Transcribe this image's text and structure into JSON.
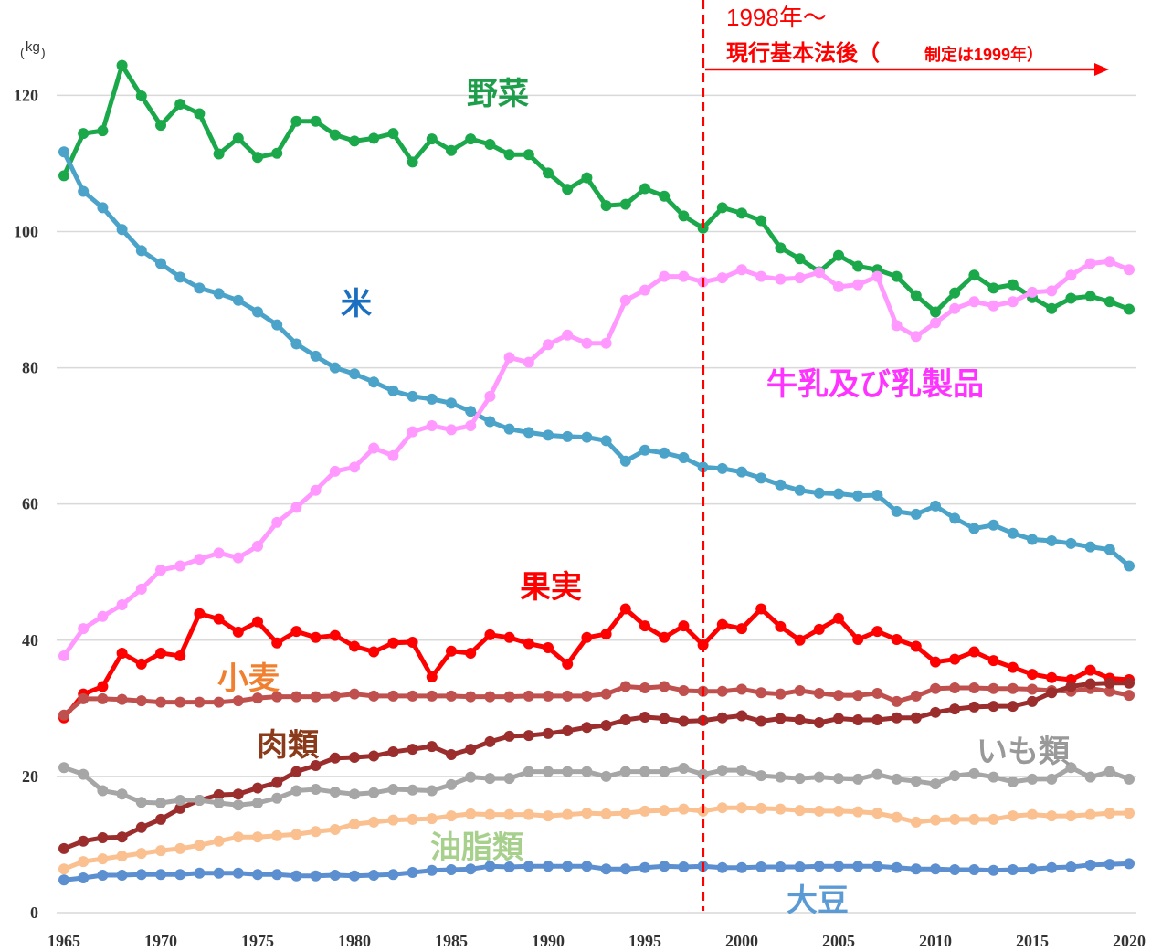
{
  "chart_data": {
    "type": "line",
    "y_unit_label": "kg",
    "annotations": [
      "1998年～",
      "現行基本法後（",
      "制定は1999年）"
    ],
    "vline_x": 1998,
    "xlim": [
      1965,
      2020
    ],
    "xticks": [
      1965,
      1970,
      1975,
      1980,
      1985,
      1990,
      1995,
      2000,
      2005,
      2010,
      2015,
      2020
    ],
    "ylim": [
      0,
      134
    ],
    "yticks": [
      0,
      20,
      40,
      60,
      80,
      100,
      120
    ],
    "grid": true,
    "x": [
      1965,
      1966,
      1967,
      1968,
      1969,
      1970,
      1971,
      1972,
      1973,
      1974,
      1975,
      1976,
      1977,
      1978,
      1979,
      1980,
      1981,
      1982,
      1983,
      1984,
      1985,
      1986,
      1987,
      1988,
      1989,
      1990,
      1991,
      1992,
      1993,
      1994,
      1995,
      1996,
      1997,
      1998,
      1999,
      2000,
      2001,
      2002,
      2003,
      2004,
      2005,
      2006,
      2007,
      2008,
      2009,
      2010,
      2011,
      2012,
      2013,
      2014,
      2015,
      2016,
      2017,
      2018,
      2019,
      2020
    ],
    "series": [
      {
        "name": "野菜",
        "color": "#1aa84a",
        "label_color": "#1e9e4a",
        "values": [
          108.2,
          114.4,
          114.8,
          124.4,
          119.9,
          115.6,
          118.7,
          117.3,
          111.4,
          113.7,
          110.9,
          111.5,
          116.2,
          116.2,
          114.2,
          113.3,
          113.7,
          114.4,
          110.2,
          113.6,
          111.9,
          113.6,
          112.8,
          111.3,
          111.3,
          108.6,
          106.2,
          107.9,
          103.8,
          104.0,
          106.3,
          105.2,
          102.3,
          100.5,
          103.5,
          102.7,
          101.6,
          97.6,
          96.0,
          94.1,
          96.5,
          94.9,
          94.4,
          93.4,
          90.6,
          88.2,
          91.0,
          93.6,
          91.7,
          92.2,
          90.3,
          88.7,
          90.2,
          90.5,
          89.7,
          88.6
        ]
      },
      {
        "name": "米",
        "color": "#4ba3c9",
        "label_color": "#1a6fc0",
        "values": [
          111.7,
          105.9,
          103.5,
          100.3,
          97.2,
          95.3,
          93.3,
          91.7,
          90.9,
          89.9,
          88.2,
          86.3,
          83.5,
          81.7,
          80.0,
          79.1,
          77.9,
          76.6,
          75.8,
          75.4,
          74.8,
          73.6,
          72.1,
          71.0,
          70.5,
          70.1,
          69.9,
          69.8,
          69.3,
          66.3,
          67.9,
          67.5,
          66.8,
          65.4,
          65.2,
          64.7,
          63.8,
          62.8,
          62.0,
          61.6,
          61.5,
          61.2,
          61.3,
          58.9,
          58.5,
          59.7,
          57.9,
          56.4,
          56.9,
          55.7,
          54.8,
          54.6,
          54.2,
          53.7,
          53.3,
          50.9
        ]
      },
      {
        "name": "牛乳及び乳製品",
        "color": "#ff99ff",
        "label_color": "#ff33ff",
        "values": [
          37.7,
          41.7,
          43.5,
          45.2,
          47.5,
          50.3,
          50.9,
          51.9,
          52.8,
          52.1,
          53.8,
          57.3,
          59.5,
          62.0,
          64.8,
          65.4,
          68.2,
          67.1,
          70.6,
          71.5,
          70.9,
          71.5,
          75.8,
          81.5,
          80.8,
          83.4,
          84.8,
          83.6,
          83.6,
          89.9,
          91.4,
          93.4,
          93.4,
          92.6,
          93.2,
          94.4,
          93.4,
          93.0,
          93.2,
          94.0,
          91.9,
          92.2,
          93.4,
          86.2,
          84.6,
          86.6,
          88.7,
          89.7,
          89.1,
          89.7,
          91.1,
          91.3,
          93.6,
          95.3,
          95.6,
          94.4
        ]
      },
      {
        "name": "果実",
        "color": "#ff0000",
        "label_color": "#ff0000",
        "values": [
          28.6,
          32.1,
          33.2,
          38.1,
          36.5,
          38.1,
          37.7,
          43.9,
          43.1,
          41.2,
          42.7,
          39.6,
          41.3,
          40.4,
          40.7,
          39.1,
          38.3,
          39.6,
          39.7,
          34.6,
          38.4,
          38.1,
          40.8,
          40.4,
          39.5,
          38.9,
          36.5,
          40.4,
          40.9,
          44.6,
          42.1,
          40.4,
          42.1,
          39.3,
          42.3,
          41.7,
          44.6,
          42.0,
          40.0,
          41.6,
          43.2,
          40.1,
          41.3,
          40.1,
          39.1,
          36.8,
          37.2,
          38.3,
          37.0,
          36.0,
          35.0,
          34.5,
          34.2,
          35.6,
          34.4,
          34.2
        ]
      },
      {
        "name": "小麦",
        "color": "#c0504d",
        "label_color": "#f08030",
        "values": [
          29.0,
          31.4,
          31.4,
          31.3,
          31.1,
          30.9,
          30.9,
          30.9,
          30.9,
          31.1,
          31.5,
          31.7,
          31.7,
          31.7,
          31.8,
          32.1,
          31.8,
          31.8,
          31.8,
          31.8,
          31.8,
          31.7,
          31.7,
          31.7,
          31.8,
          31.8,
          31.8,
          31.8,
          32.1,
          33.2,
          33.0,
          33.2,
          32.6,
          32.5,
          32.5,
          32.8,
          32.3,
          32.1,
          32.6,
          32.2,
          31.9,
          31.9,
          32.2,
          31.0,
          31.8,
          32.9,
          33.0,
          33.0,
          32.9,
          32.9,
          32.8,
          32.6,
          32.5,
          32.9,
          32.5,
          31.9
        ]
      },
      {
        "name": "肉類",
        "color": "#9b2d2d",
        "label_color": "#8b3a1a",
        "values": [
          9.4,
          10.5,
          11.0,
          11.1,
          12.5,
          13.7,
          15.3,
          16.5,
          17.3,
          17.4,
          18.3,
          19.1,
          20.7,
          21.6,
          22.7,
          22.8,
          23.0,
          23.6,
          24.0,
          24.4,
          23.2,
          24.0,
          25.1,
          25.9,
          26.0,
          26.3,
          26.7,
          27.2,
          27.5,
          28.3,
          28.7,
          28.5,
          28.1,
          28.2,
          28.6,
          28.9,
          28.1,
          28.5,
          28.3,
          27.9,
          28.5,
          28.3,
          28.3,
          28.6,
          28.6,
          29.4,
          29.9,
          30.2,
          30.3,
          30.3,
          31.0,
          32.3,
          33.2,
          33.6,
          33.7,
          33.7
        ]
      },
      {
        "name": "いも類",
        "color": "#a6a6a6",
        "label_color": "#999999",
        "values": [
          21.3,
          20.3,
          17.9,
          17.4,
          16.2,
          16.1,
          16.5,
          16.5,
          16.1,
          15.8,
          16.1,
          16.8,
          17.9,
          18.1,
          17.7,
          17.4,
          17.6,
          18.1,
          18.0,
          17.9,
          18.8,
          19.9,
          19.7,
          19.7,
          20.7,
          20.7,
          20.7,
          20.7,
          20.0,
          20.7,
          20.7,
          20.7,
          21.2,
          20.3,
          20.9,
          20.9,
          20.1,
          19.9,
          19.7,
          19.9,
          19.7,
          19.6,
          20.3,
          19.6,
          19.3,
          18.9,
          20.1,
          20.4,
          19.9,
          19.2,
          19.6,
          19.6,
          21.3,
          19.9,
          20.7,
          19.6
        ]
      },
      {
        "name": "油脂類",
        "color": "#fac090",
        "label_color": "#a8d08d",
        "values": [
          6.4,
          7.5,
          7.9,
          8.3,
          8.7,
          9.1,
          9.4,
          9.9,
          10.5,
          11.1,
          11.1,
          11.3,
          11.5,
          11.9,
          12.2,
          13.0,
          13.3,
          13.6,
          13.7,
          13.8,
          14.2,
          14.5,
          14.4,
          14.4,
          14.4,
          14.2,
          14.4,
          14.6,
          14.5,
          14.6,
          14.9,
          15.0,
          15.2,
          14.9,
          15.4,
          15.4,
          15.3,
          15.2,
          15.0,
          14.9,
          14.9,
          14.8,
          14.6,
          14.0,
          13.3,
          13.6,
          13.7,
          13.7,
          13.7,
          14.2,
          14.4,
          14.2,
          14.2,
          14.4,
          14.6,
          14.6
        ]
      },
      {
        "name": "大豆",
        "color": "#5b8fd0",
        "label_color": "#5b9bd5",
        "values": [
          4.8,
          5.1,
          5.5,
          5.5,
          5.6,
          5.6,
          5.6,
          5.8,
          5.8,
          5.8,
          5.6,
          5.6,
          5.4,
          5.4,
          5.5,
          5.4,
          5.5,
          5.6,
          5.9,
          6.2,
          6.3,
          6.4,
          6.8,
          6.7,
          6.8,
          6.8,
          6.8,
          6.8,
          6.4,
          6.4,
          6.6,
          6.8,
          6.7,
          6.8,
          6.6,
          6.6,
          6.7,
          6.7,
          6.7,
          6.8,
          6.8,
          6.8,
          6.8,
          6.6,
          6.4,
          6.4,
          6.3,
          6.3,
          6.2,
          6.3,
          6.4,
          6.6,
          6.7,
          7.0,
          7.1,
          7.2
        ]
      }
    ]
  }
}
